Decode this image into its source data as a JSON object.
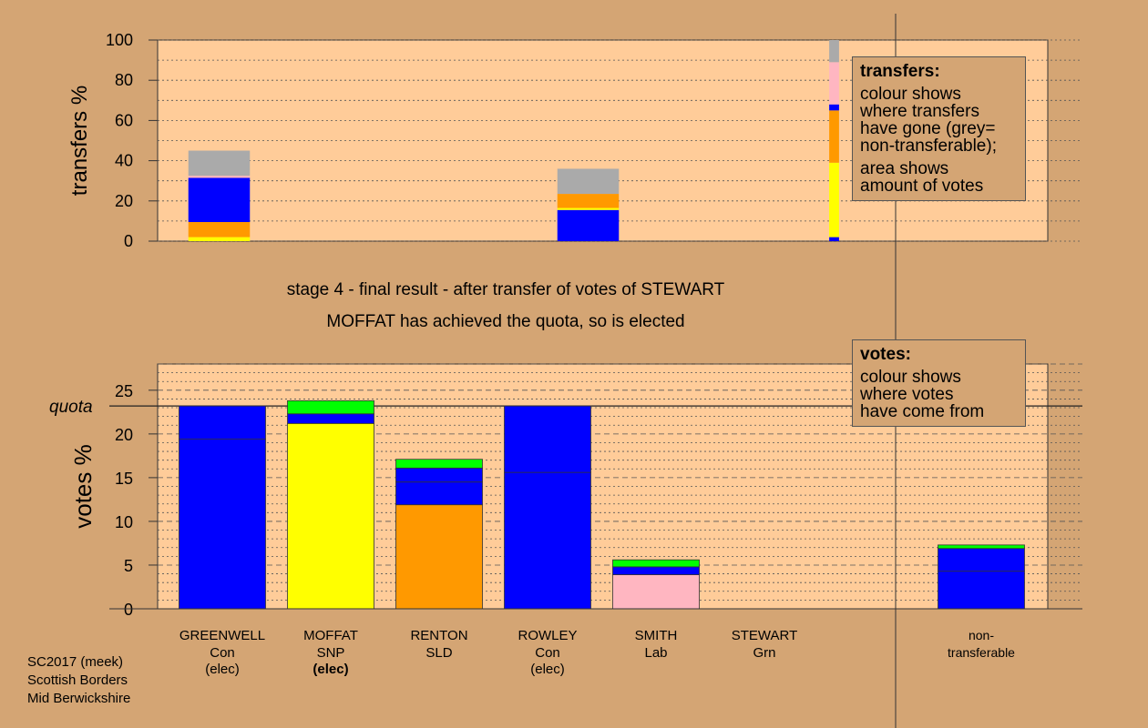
{
  "chart_data": [
    {
      "type": "bar",
      "stacked": true,
      "ylabel": "transfers %",
      "ylim": [
        0,
        100
      ],
      "yticks": [
        0,
        20,
        40,
        60,
        80,
        100
      ],
      "columns": [
        {
          "x": 0.5,
          "width": 0.5,
          "segments": [
            {
              "color": "#ffff00",
              "value": 2
            },
            {
              "color": "#ff9900",
              "value": 7.5
            },
            {
              "color": "#0000ff",
              "value": 22
            },
            {
              "color": "#ffb6c1",
              "value": 1
            },
            {
              "color": "#aaaaaa",
              "value": 12.5
            }
          ]
        },
        {
          "x": 3.5,
          "width": 0.5,
          "segments": [
            {
              "color": "#0000ff",
              "value": 15.5
            },
            {
              "color": "#ffff00",
              "value": 1
            },
            {
              "color": "#ff9900",
              "value": 7
            },
            {
              "color": "#aaaaaa",
              "value": 12.5
            }
          ]
        },
        {
          "x": 5.5,
          "width": 0.08,
          "segments": [
            {
              "color": "#0000ff",
              "value": 2
            },
            {
              "color": "#ffff00",
              "value": 37
            },
            {
              "color": "#ff9900",
              "value": 26
            },
            {
              "color": "#0000ff",
              "value": 3
            },
            {
              "color": "#ffb6c1",
              "value": 21
            },
            {
              "color": "#aaaaaa",
              "value": 11
            }
          ]
        }
      ],
      "legend": {
        "title": "transfers:",
        "lines1": [
          "colour shows",
          "where transfers",
          "have gone (grey=",
          "non-transferable);"
        ],
        "lines2": [
          "area shows",
          "amount of votes"
        ]
      }
    },
    {
      "type": "bar",
      "stacked": true,
      "ylabel": "votes %",
      "ylim": [
        0,
        28
      ],
      "yticks": [
        0,
        5,
        10,
        15,
        20,
        25
      ],
      "quota": 23.2,
      "quota_label": "quota",
      "categories": [
        {
          "name": "GREENWELL",
          "party": "Con",
          "status": "(elec)",
          "bold": false
        },
        {
          "name": "MOFFAT",
          "party": "SNP",
          "status": "(elec)",
          "bold": true
        },
        {
          "name": "RENTON",
          "party": "SLD",
          "status": "",
          "bold": false
        },
        {
          "name": "ROWLEY",
          "party": "Con",
          "status": "(elec)",
          "bold": false
        },
        {
          "name": "SMITH",
          "party": "Lab",
          "status": "",
          "bold": false
        },
        {
          "name": "STEWART",
          "party": "Grn",
          "status": "",
          "bold": false
        }
      ],
      "bars": [
        {
          "pos": 0,
          "segments": [
            {
              "color": "#0000ff",
              "value": 19.4
            },
            {
              "color": "#0000ff",
              "value": 3.8
            }
          ]
        },
        {
          "pos": 1,
          "segments": [
            {
              "color": "#ffff00",
              "value": 21.2
            },
            {
              "color": "#0000ff",
              "value": 1.1
            },
            {
              "color": "#00ff00",
              "value": 1.5
            }
          ]
        },
        {
          "pos": 2,
          "segments": [
            {
              "color": "#ff9900",
              "value": 11.9
            },
            {
              "color": "#0000ff",
              "value": 2.6
            },
            {
              "color": "#0000ff",
              "value": 1.6
            },
            {
              "color": "#00ff00",
              "value": 1.0
            }
          ]
        },
        {
          "pos": 3,
          "segments": [
            {
              "color": "#0000ff",
              "value": 15.6
            },
            {
              "color": "#0000ff",
              "value": 7.6
            }
          ]
        },
        {
          "pos": 4,
          "segments": [
            {
              "color": "#ffb6c1",
              "value": 3.9
            },
            {
              "color": "#0000ff",
              "value": 0.9
            },
            {
              "color": "#00ff00",
              "value": 0.8
            }
          ]
        },
        {
          "pos": 7,
          "segments": [
            {
              "color": "#0000ff",
              "value": 4.3
            },
            {
              "color": "#0000ff",
              "value": 2.6
            },
            {
              "color": "#00ff00",
              "value": 0.4
            }
          ]
        }
      ],
      "nontransferable_label": [
        "non-",
        "transferable"
      ],
      "legend": {
        "title": "votes:",
        "lines1": [
          "colour shows",
          "where votes",
          "have come from"
        ]
      }
    }
  ],
  "stage_title": "stage 4 - final result - after transfer of votes of STEWART",
  "stage_subtitle": "MOFFAT has achieved the quota, so is elected",
  "footer": [
    "SC2017 (meek)",
    "Scottish Borders",
    "Mid Berwickshire"
  ]
}
